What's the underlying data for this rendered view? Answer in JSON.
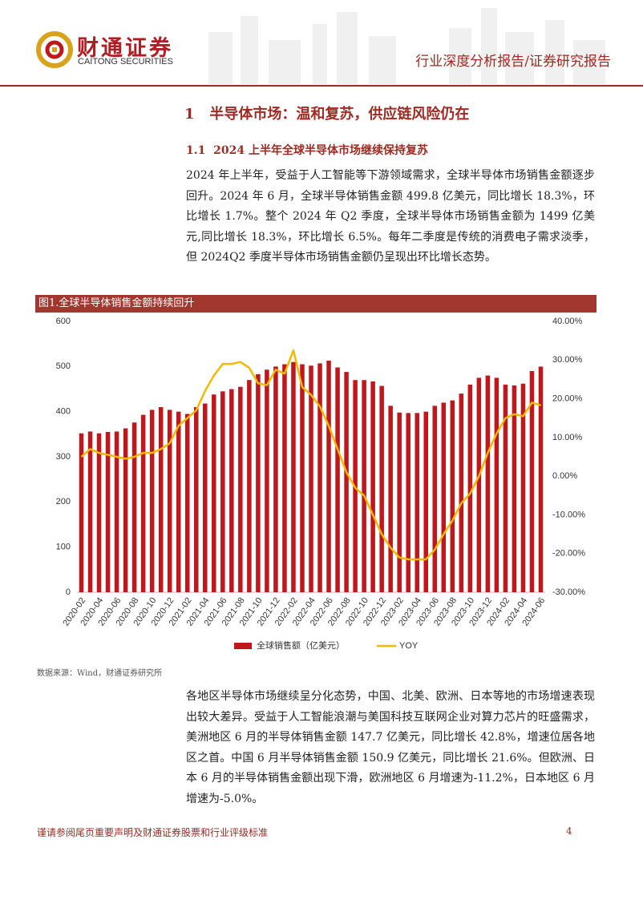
{
  "header": {
    "logo_cn": "财通证券",
    "logo_en": "CAITONG SECURITIES",
    "report_type": "行业深度分析报告/证券研究报告"
  },
  "section": {
    "number": "1",
    "title": "半导体市场：温和复苏，供应链风险仍在"
  },
  "subsection": {
    "number": "1.1",
    "title": "2024 上半年全球半导体市场继续保持复苏"
  },
  "paragraphs": [
    "2024 年上半年，受益于人工智能等下游领域需求，全球半导体市场销售金额逐步回升。2024 年 6 月，全球半导体销售金额 499.8 亿美元，同比增长 18.3%，环比增长 1.7%。整个 2024 年 Q2 季度，全球半导体市场销售金额为 1499 亿美元,同比增长 18.3%，环比增长 6.5%。每年二季度是传统的消费电子需求淡季，但 2024Q2 季度半导体市场销售金额仍呈现出环比增长态势。",
    "各地区半导体市场继续呈分化态势，中国、北美、欧洲、日本等地的市场增速表现出较大差异。受益于人工智能浪潮与美国科技互联网企业对算力芯片的旺盛需求，美洲地区 6 月的半导体销售金额 147.7 亿美元，同比增长 42.8%，增速位居各地区之首。中国 6 月半导体销售金额 150.9 亿美元，同比增长 21.6%。但欧洲、日本 6 月的半导体销售金额出现下滑，欧洲地区 6 月增速为-11.2%，日本地区 6 月增速为-5.0%。"
  ],
  "figure": {
    "caption": "图1.全球半导体销售金额持续回升",
    "source": "数据来源：Wind，财通证券研究所"
  },
  "chart_data": {
    "type": "bar",
    "categories": [
      "2020-02",
      null,
      "2020-04",
      null,
      "2020-06",
      null,
      "2020-08",
      null,
      "2020-10",
      null,
      "2020-12",
      null,
      "2021-02",
      null,
      "2021-04",
      null,
      "2021-06",
      null,
      "2021-08",
      null,
      "2021-10",
      null,
      "2021-12",
      null,
      "2022-02",
      null,
      "2022-04",
      null,
      "2022-06",
      null,
      "2022-08",
      null,
      "2022-10",
      null,
      "2022-12",
      null,
      "2023-02",
      null,
      "2023-04",
      null,
      "2023-06",
      null,
      "2023-08",
      null,
      "2023-10",
      null,
      "2023-12",
      null,
      "2024-02",
      null,
      "2024-04",
      null,
      "2024-06"
    ],
    "series": [
      {
        "name": "全球销售额（亿美元）",
        "type": "bar",
        "color": "#c0171d",
        "values": [
          352,
          356,
          352,
          355,
          356,
          363,
          376,
          393,
          404,
          410,
          404,
          400,
          395,
          410,
          418,
          438,
          445,
          450,
          455,
          470,
          483,
          493,
          500,
          505,
          510,
          505,
          502,
          507,
          513,
          498,
          488,
          470,
          470,
          467,
          457,
          413,
          398,
          397,
          397,
          400,
          413,
          420,
          425,
          440,
          460,
          475,
          480,
          475,
          460,
          458,
          462,
          490,
          499.8
        ]
      },
      {
        "name": "YOY",
        "type": "line",
        "axis": "y2",
        "color": "#f5b800",
        "values": [
          5,
          7,
          6,
          5.5,
          5,
          4.5,
          5,
          6,
          6,
          7,
          8.5,
          13,
          15,
          17,
          22,
          26,
          29,
          29,
          29.5,
          28,
          24,
          23.5,
          27.5,
          26.5,
          32.5,
          23,
          21,
          18,
          13,
          7,
          1,
          -3,
          -5,
          -10,
          -15,
          -18.5,
          -21,
          -21.5,
          -21.5,
          -21.5,
          -19,
          -15,
          -11.5,
          -7,
          -4.5,
          0,
          6,
          11,
          15,
          16,
          15.5,
          19,
          18.3
        ]
      }
    ],
    "ylim": [
      0,
      600
    ],
    "yticks": [
      0,
      100,
      200,
      300,
      400,
      500,
      600
    ],
    "y2lim": [
      -30,
      40
    ],
    "y2ticks": [
      {
        "value": -30,
        "label": "-30.00%"
      },
      {
        "value": -20,
        "label": "-20.00%"
      },
      {
        "value": -10,
        "label": "-10.00%"
      },
      {
        "value": 0,
        "label": "0.00%"
      },
      {
        "value": 10,
        "label": "10.00%"
      },
      {
        "value": 20,
        "label": "20.00%"
      },
      {
        "value": 30,
        "label": "30.00%"
      },
      {
        "value": 40,
        "label": "40.00%"
      }
    ],
    "grid": false,
    "legend": "bottom"
  },
  "footer": {
    "disclaimer": "谨请参阅尾页重要声明及财通证券股票和行业评级标准",
    "page": "4"
  }
}
